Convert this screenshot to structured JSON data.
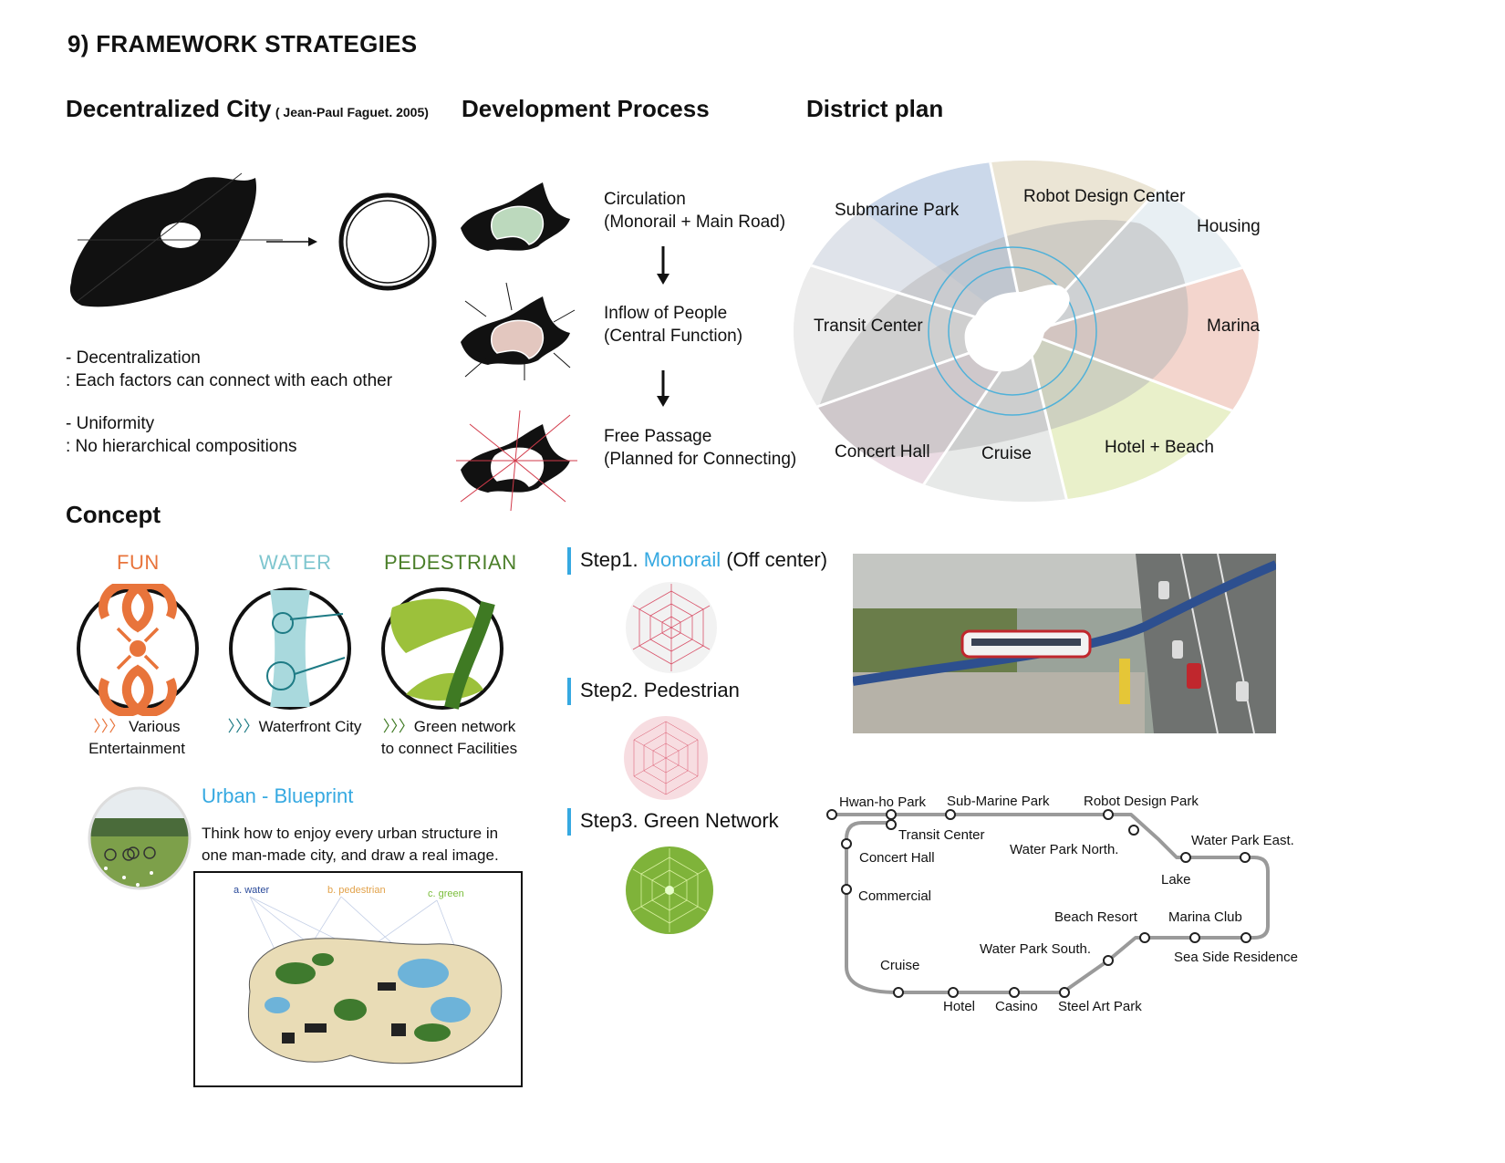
{
  "page": {
    "title": "9) FRAMEWORK STRATEGIES"
  },
  "decentralized": {
    "heading": "Decentralized City",
    "citation": "( Jean-Paul Faguet. 2005)",
    "point1_title": "- Decentralization",
    "point1_text": ": Each factors can connect with each other",
    "point2_title": "- Uniformity",
    "point2_text": ": No hierarchical compositions"
  },
  "development": {
    "heading": "Development Process",
    "steps": [
      {
        "line1": "Circulation",
        "line2": "(Monorail + Main Road)"
      },
      {
        "line1": "Inflow of People",
        "line2": "(Central Function)"
      },
      {
        "line1": "Free Passage",
        "line2": "(Planned for Connecting)"
      }
    ]
  },
  "district": {
    "heading": "District plan",
    "zones": [
      "Submarine Park",
      "Robot Design Center",
      "Housing",
      "Transit Center",
      "Marina",
      "Concert Hall",
      "Cruise",
      "Hotel + Beach"
    ],
    "colors": {
      "submarine": "#c9d6ea",
      "robot": "#e9e3d3",
      "housing": "#e6eef3",
      "marina": "#f3d3cb",
      "hotel": "#e7efc7",
      "cruise": "#e8eae9",
      "concert": "#e9d3df",
      "transit": "#eeeeee"
    }
  },
  "concept": {
    "heading": "Concept",
    "items": [
      {
        "word": "FUN",
        "color": "#e8743b",
        "arrows": "〉〉〉",
        "caption1": "Various",
        "caption2": "Entertainment"
      },
      {
        "word": "WATER",
        "color": "#7fc6cf",
        "arrows": "〉〉〉",
        "caption1": "Waterfront City",
        "caption2": ""
      },
      {
        "word": "PEDESTRIAN",
        "color": "#4b7f2a",
        "arrows": "〉〉〉",
        "caption1": "Green network",
        "caption2": "to connect Facilities"
      }
    ],
    "blueprint_title": "Urban - Blueprint",
    "blueprint_text1": "Think how to enjoy every urban structure in",
    "blueprint_text2": "one man-made city, and draw a real image.",
    "map_labels": {
      "water": "a. water",
      "pedestrian": "b. pedestrian",
      "green": "c. green"
    }
  },
  "steps": [
    {
      "prefix": "Step1. ",
      "highlight": "Monorail",
      "suffix": " (Off center)"
    },
    {
      "prefix": "Step2. Pedestrian",
      "highlight": "",
      "suffix": ""
    },
    {
      "prefix": "Step3. Green Network",
      "highlight": "",
      "suffix": ""
    }
  ],
  "route_map": {
    "stations": [
      "Hwan-ho Park",
      "Sub-Marine Park",
      "Robot Design Park",
      "Transit Center",
      "Water Park North.",
      "Water Park East.",
      "Concert Hall",
      "Lake",
      "Commercial",
      "Beach Resort",
      "Marina Club",
      "Water Park South.",
      "Sea Side Residence",
      "Cruise",
      "Hotel",
      "Casino",
      "Steel Art Park"
    ]
  }
}
